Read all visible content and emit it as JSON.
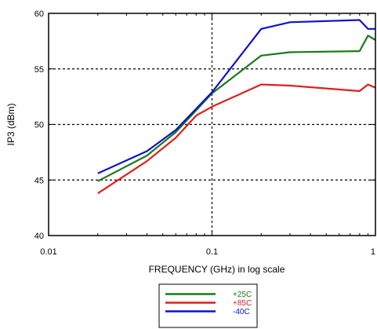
{
  "chart_data": {
    "type": "line",
    "xlabel": "FREQUENCY (GHz) in log scale",
    "ylabel": "IP3 (dBm)",
    "xscale": "log",
    "xlim": [
      0.01,
      1
    ],
    "ylim": [
      40,
      60
    ],
    "x_ticks": [
      0.01,
      0.1,
      1
    ],
    "x_tick_labels": [
      "0.01",
      "0.1",
      "1"
    ],
    "y_ticks": [
      40,
      45,
      50,
      55,
      60
    ],
    "y_tick_labels": [
      "40",
      "45",
      "50",
      "55",
      "60"
    ],
    "grid": "dashed at x=0.1 and y=45, 50, 55",
    "legend_placement": "bottom-center, below plot",
    "series": [
      {
        "name": "+25C",
        "color": "#1a7a1a",
        "x": [
          0.02,
          0.04,
          0.06,
          0.1,
          0.2,
          0.3,
          0.8,
          0.9,
          1.0
        ],
        "y": [
          44.9,
          47.2,
          49.3,
          52.8,
          56.2,
          56.5,
          56.6,
          58.0,
          57.6
        ]
      },
      {
        "name": "+85C",
        "color": "#dd1f1f",
        "x": [
          0.02,
          0.04,
          0.06,
          0.08,
          0.1,
          0.2,
          0.3,
          0.8,
          0.9,
          1.0
        ],
        "y": [
          43.8,
          46.7,
          48.8,
          50.8,
          51.6,
          53.6,
          53.5,
          53.0,
          53.6,
          53.3
        ]
      },
      {
        "name": "-40C",
        "color": "#1010cc",
        "x": [
          0.02,
          0.04,
          0.06,
          0.1,
          0.2,
          0.3,
          0.8,
          0.9,
          1.0
        ],
        "y": [
          45.6,
          47.6,
          49.5,
          52.9,
          58.6,
          59.2,
          59.4,
          58.6,
          58.6
        ]
      }
    ]
  }
}
